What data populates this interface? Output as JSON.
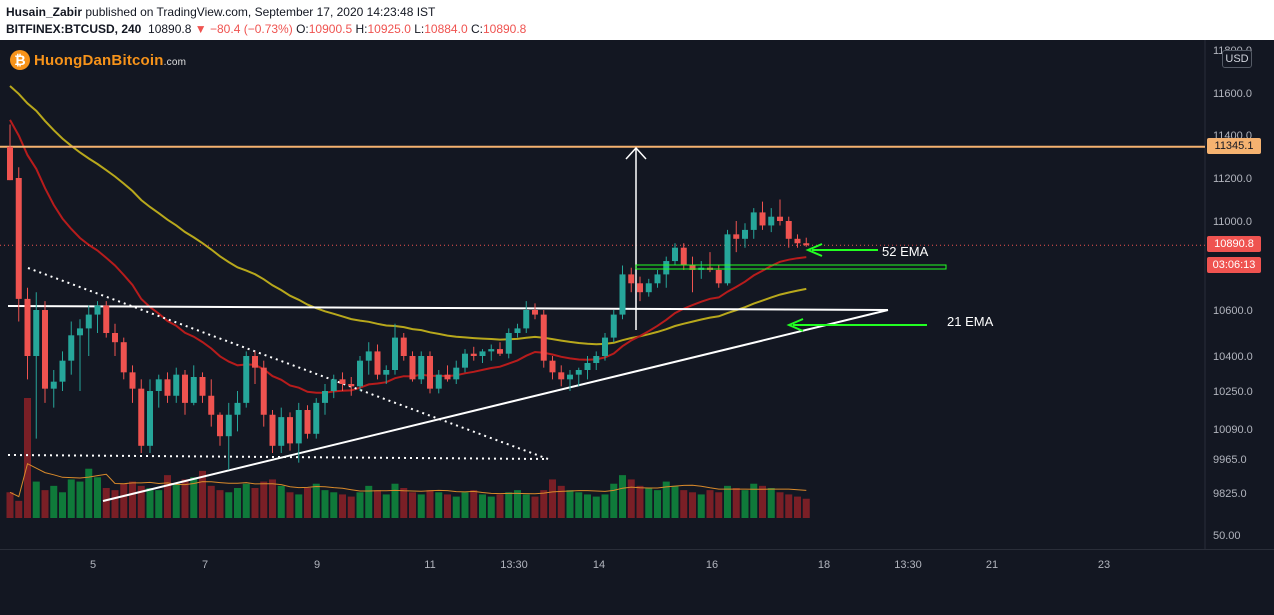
{
  "header": {
    "author": "Husain_Zabir",
    "published_text": " published on TradingView.com, September 17, 2020 14:23:48 IST",
    "symbol": "BITFINEX:BTCUSD, 240",
    "last": "10890.8",
    "change_arrow": "▼",
    "change": "−80.4 (−0.73%)",
    "o_label": "O:",
    "o_value": "10900.5",
    "h_label": "H:",
    "h_value": "10925.0",
    "l_label": "L:",
    "l_value": "10884.0",
    "c_label": "C:",
    "c_value": "10890.8"
  },
  "logo": {
    "main": "HuongDanBitcoin",
    "suffix": ".com",
    "icon": "bitcoin-icon"
  },
  "scale_button": "USD",
  "price_tags": {
    "level": "11345.1",
    "last": "10890.8",
    "countdown": "03:06:13"
  },
  "annotations": {
    "ema52": "52 EMA",
    "ema21": "21 EMA"
  },
  "colors": {
    "background": "#131722",
    "up": "#26a69a",
    "down": "#ef5350",
    "resistance": "#f5b270",
    "ema_red": "#b71c1c",
    "ema_yellow": "#b8a81c",
    "arrows": "#22ff22"
  },
  "chart_data": {
    "type": "candlestick",
    "title": "",
    "xlabel": "",
    "ylabel": "",
    "x_ticks": [
      "5",
      "7",
      "9",
      "11",
      "13:30",
      "14",
      "16",
      "18",
      "13:30",
      "21",
      "23"
    ],
    "y_ticks": [
      "11800.0",
      "11600.0",
      "11400.0",
      "11200.0",
      "11000.0",
      "10600.0",
      "10400.0",
      "10250.0",
      "10090.0",
      "9965.0",
      "9825.0",
      "50.00"
    ],
    "resistance_level": 11345.1,
    "support_level": 10620,
    "last_price": 10890.8,
    "candles": [
      {
        "o": 11345,
        "h": 11450,
        "l": 11190,
        "c": 11190
      },
      {
        "o": 11200,
        "h": 11250,
        "l": 10550,
        "c": 10650
      },
      {
        "o": 10650,
        "h": 10700,
        "l": 10300,
        "c": 10400
      },
      {
        "o": 10400,
        "h": 10680,
        "l": 10050,
        "c": 10600
      },
      {
        "o": 10600,
        "h": 10640,
        "l": 10200,
        "c": 10260
      },
      {
        "o": 10260,
        "h": 10340,
        "l": 10180,
        "c": 10290
      },
      {
        "o": 10290,
        "h": 10420,
        "l": 10250,
        "c": 10380
      },
      {
        "o": 10380,
        "h": 10550,
        "l": 10320,
        "c": 10490
      },
      {
        "o": 10490,
        "h": 10560,
        "l": 10250,
        "c": 10520
      },
      {
        "o": 10520,
        "h": 10620,
        "l": 10400,
        "c": 10580
      },
      {
        "o": 10580,
        "h": 10640,
        "l": 10500,
        "c": 10620
      },
      {
        "o": 10620,
        "h": 10640,
        "l": 10480,
        "c": 10500
      },
      {
        "o": 10500,
        "h": 10540,
        "l": 10400,
        "c": 10460
      },
      {
        "o": 10460,
        "h": 10480,
        "l": 10300,
        "c": 10330
      },
      {
        "o": 10330,
        "h": 10360,
        "l": 10200,
        "c": 10260
      },
      {
        "o": 10260,
        "h": 10300,
        "l": 9990,
        "c": 10020
      },
      {
        "o": 10020,
        "h": 10300,
        "l": 9990,
        "c": 10250
      },
      {
        "o": 10250,
        "h": 10320,
        "l": 10180,
        "c": 10300
      },
      {
        "o": 10300,
        "h": 10330,
        "l": 10200,
        "c": 10230
      },
      {
        "o": 10230,
        "h": 10350,
        "l": 10200,
        "c": 10320
      },
      {
        "o": 10320,
        "h": 10340,
        "l": 10150,
        "c": 10200
      },
      {
        "o": 10200,
        "h": 10360,
        "l": 10190,
        "c": 10310
      },
      {
        "o": 10310,
        "h": 10330,
        "l": 10200,
        "c": 10230
      },
      {
        "o": 10230,
        "h": 10300,
        "l": 10100,
        "c": 10150
      },
      {
        "o": 10150,
        "h": 10160,
        "l": 10020,
        "c": 10060
      },
      {
        "o": 10060,
        "h": 10200,
        "l": 9920,
        "c": 10150
      },
      {
        "o": 10150,
        "h": 10250,
        "l": 10080,
        "c": 10200
      },
      {
        "o": 10200,
        "h": 10420,
        "l": 10180,
        "c": 10400
      },
      {
        "o": 10400,
        "h": 10420,
        "l": 10280,
        "c": 10350
      },
      {
        "o": 10350,
        "h": 10380,
        "l": 10100,
        "c": 10150
      },
      {
        "o": 10150,
        "h": 10170,
        "l": 9990,
        "c": 10020
      },
      {
        "o": 10020,
        "h": 10180,
        "l": 9990,
        "c": 10140
      },
      {
        "o": 10140,
        "h": 10160,
        "l": 10000,
        "c": 10030
      },
      {
        "o": 10030,
        "h": 10200,
        "l": 9950,
        "c": 10170
      },
      {
        "o": 10170,
        "h": 10190,
        "l": 10050,
        "c": 10070
      },
      {
        "o": 10070,
        "h": 10220,
        "l": 10050,
        "c": 10200
      },
      {
        "o": 10200,
        "h": 10280,
        "l": 10150,
        "c": 10250
      },
      {
        "o": 10250,
        "h": 10320,
        "l": 10220,
        "c": 10300
      },
      {
        "o": 10300,
        "h": 10330,
        "l": 10250,
        "c": 10280
      },
      {
        "o": 10280,
        "h": 10310,
        "l": 10230,
        "c": 10270
      },
      {
        "o": 10270,
        "h": 10400,
        "l": 10250,
        "c": 10380
      },
      {
        "o": 10380,
        "h": 10460,
        "l": 10320,
        "c": 10420
      },
      {
        "o": 10420,
        "h": 10450,
        "l": 10300,
        "c": 10320
      },
      {
        "o": 10320,
        "h": 10360,
        "l": 10280,
        "c": 10340
      },
      {
        "o": 10340,
        "h": 10540,
        "l": 10320,
        "c": 10480
      },
      {
        "o": 10480,
        "h": 10500,
        "l": 10380,
        "c": 10400
      },
      {
        "o": 10400,
        "h": 10420,
        "l": 10290,
        "c": 10300
      },
      {
        "o": 10300,
        "h": 10420,
        "l": 10280,
        "c": 10400
      },
      {
        "o": 10400,
        "h": 10420,
        "l": 10240,
        "c": 10260
      },
      {
        "o": 10260,
        "h": 10340,
        "l": 10240,
        "c": 10320
      },
      {
        "o": 10320,
        "h": 10360,
        "l": 10290,
        "c": 10300
      },
      {
        "o": 10300,
        "h": 10380,
        "l": 10280,
        "c": 10350
      },
      {
        "o": 10350,
        "h": 10430,
        "l": 10330,
        "c": 10410
      },
      {
        "o": 10410,
        "h": 10440,
        "l": 10380,
        "c": 10400
      },
      {
        "o": 10400,
        "h": 10430,
        "l": 10370,
        "c": 10420
      },
      {
        "o": 10420,
        "h": 10450,
        "l": 10380,
        "c": 10430
      },
      {
        "o": 10430,
        "h": 10460,
        "l": 10400,
        "c": 10410
      },
      {
        "o": 10410,
        "h": 10520,
        "l": 10390,
        "c": 10500
      },
      {
        "o": 10500,
        "h": 10540,
        "l": 10480,
        "c": 10520
      },
      {
        "o": 10520,
        "h": 10640,
        "l": 10500,
        "c": 10600
      },
      {
        "o": 10600,
        "h": 10630,
        "l": 10560,
        "c": 10580
      },
      {
        "o": 10580,
        "h": 10600,
        "l": 10350,
        "c": 10380
      },
      {
        "o": 10380,
        "h": 10400,
        "l": 10300,
        "c": 10330
      },
      {
        "o": 10330,
        "h": 10360,
        "l": 10270,
        "c": 10300
      },
      {
        "o": 10300,
        "h": 10340,
        "l": 10250,
        "c": 10320
      },
      {
        "o": 10320,
        "h": 10350,
        "l": 10270,
        "c": 10340
      },
      {
        "o": 10340,
        "h": 10400,
        "l": 10300,
        "c": 10370
      },
      {
        "o": 10370,
        "h": 10420,
        "l": 10340,
        "c": 10400
      },
      {
        "o": 10400,
        "h": 10500,
        "l": 10380,
        "c": 10480
      },
      {
        "o": 10480,
        "h": 10600,
        "l": 10460,
        "c": 10580
      },
      {
        "o": 10580,
        "h": 10800,
        "l": 10560,
        "c": 10760
      },
      {
        "o": 10760,
        "h": 10790,
        "l": 10680,
        "c": 10720
      },
      {
        "o": 10720,
        "h": 10750,
        "l": 10640,
        "c": 10680
      },
      {
        "o": 10680,
        "h": 10740,
        "l": 10660,
        "c": 10720
      },
      {
        "o": 10720,
        "h": 10780,
        "l": 10700,
        "c": 10760
      },
      {
        "o": 10760,
        "h": 10840,
        "l": 10700,
        "c": 10820
      },
      {
        "o": 10820,
        "h": 10900,
        "l": 10800,
        "c": 10880
      },
      {
        "o": 10880,
        "h": 10900,
        "l": 10780,
        "c": 10800
      },
      {
        "o": 10800,
        "h": 10840,
        "l": 10680,
        "c": 10780
      },
      {
        "o": 10780,
        "h": 10820,
        "l": 10740,
        "c": 10790
      },
      {
        "o": 10790,
        "h": 10860,
        "l": 10770,
        "c": 10780
      },
      {
        "o": 10780,
        "h": 10800,
        "l": 10700,
        "c": 10720
      },
      {
        "o": 10720,
        "h": 10960,
        "l": 10710,
        "c": 10940
      },
      {
        "o": 10940,
        "h": 11000,
        "l": 10860,
        "c": 10920
      },
      {
        "o": 10920,
        "h": 10990,
        "l": 10880,
        "c": 10960
      },
      {
        "o": 10960,
        "h": 11060,
        "l": 10920,
        "c": 11040
      },
      {
        "o": 11040,
        "h": 11090,
        "l": 10960,
        "c": 10980
      },
      {
        "o": 10980,
        "h": 11060,
        "l": 10950,
        "c": 11020
      },
      {
        "o": 11020,
        "h": 11100,
        "l": 10980,
        "c": 11000
      },
      {
        "o": 11000,
        "h": 11020,
        "l": 10880,
        "c": 10920
      },
      {
        "o": 10920,
        "h": 10940,
        "l": 10880,
        "c": 10900
      },
      {
        "o": 10900,
        "h": 10925,
        "l": 10884,
        "c": 10890.8
      }
    ],
    "volume": [
      120,
      80,
      560,
      170,
      130,
      150,
      120,
      180,
      170,
      230,
      190,
      140,
      130,
      160,
      170,
      150,
      140,
      130,
      200,
      160,
      180,
      190,
      220,
      150,
      130,
      120,
      140,
      160,
      140,
      170,
      180,
      150,
      120,
      110,
      140,
      160,
      130,
      120,
      110,
      100,
      120,
      150,
      130,
      110,
      160,
      140,
      120,
      110,
      130,
      120,
      110,
      100,
      120,
      130,
      110,
      100,
      110,
      120,
      130,
      110,
      100,
      130,
      180,
      150,
      130,
      120,
      110,
      100,
      110,
      160,
      200,
      180,
      150,
      140,
      130,
      170,
      150,
      130,
      120,
      110,
      130,
      120,
      150,
      140,
      130,
      160,
      150,
      140,
      120,
      110,
      100,
      90
    ]
  }
}
